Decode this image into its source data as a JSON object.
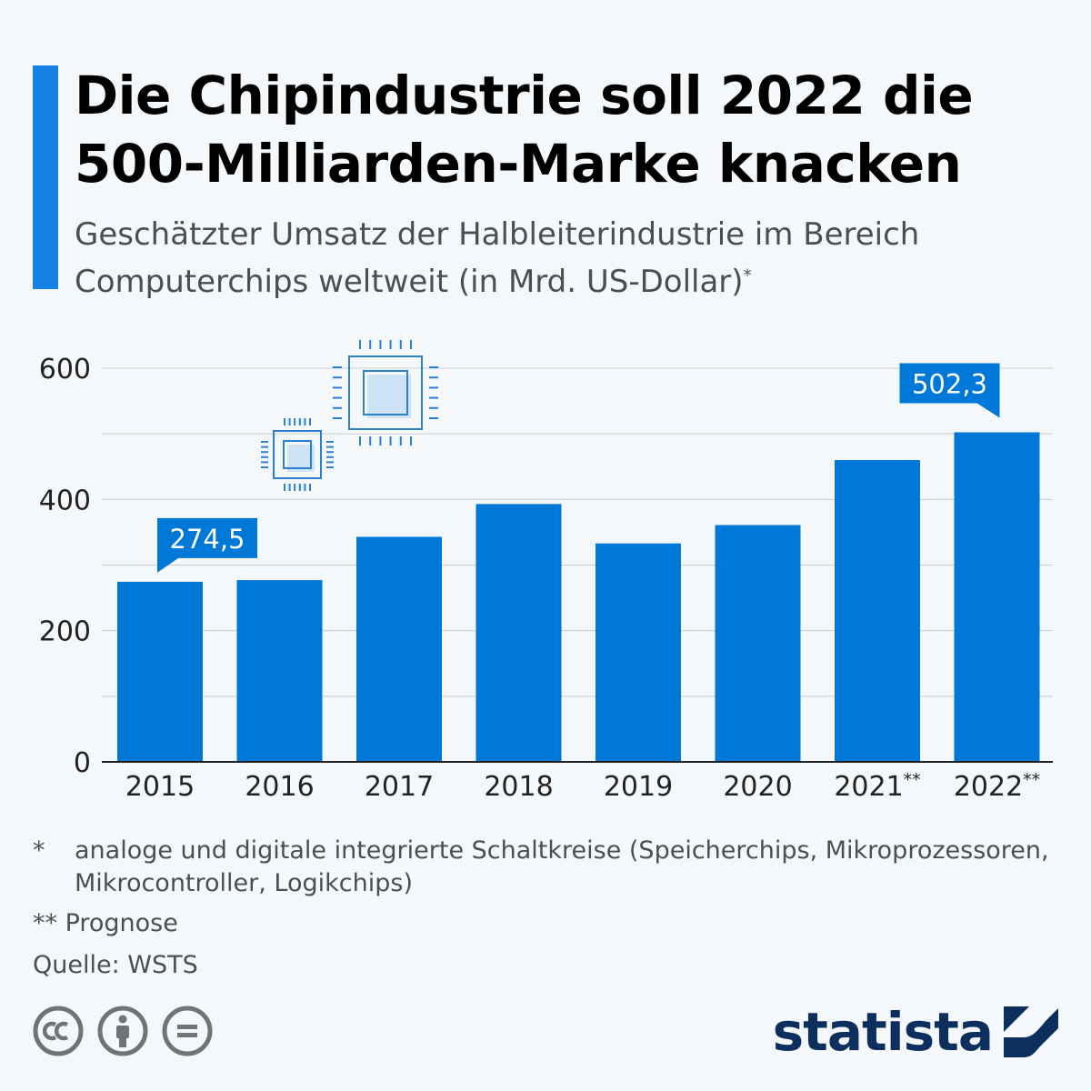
{
  "header": {
    "title_line1": "Die Chipindustrie soll 2022 die",
    "title_line2": "500-Milliarden-Marke knacken",
    "subtitle_line1": "Geschätzter Umsatz der Halbleiterindustrie im Bereich",
    "subtitle_line2": "Computerchips weltweit (in Mrd. US-Dollar)",
    "subtitle_mark": "*"
  },
  "chart_data": {
    "type": "bar",
    "categories": [
      "2015",
      "2016",
      "2017",
      "2018",
      "2019",
      "2020",
      "2021**",
      "2022**"
    ],
    "values": [
      274.5,
      277,
      343,
      393,
      333,
      361,
      460,
      502.3
    ],
    "callouts": [
      {
        "index": 0,
        "label": "274,5"
      },
      {
        "index": 7,
        "label": "502,3"
      }
    ],
    "ylim": [
      0,
      600
    ],
    "yticks": [
      "0",
      "200",
      "400",
      "600"
    ],
    "ytick_values": [
      0,
      200,
      400,
      600
    ],
    "gridline_step": 100,
    "grid": true,
    "bar_color": "#0078d7",
    "callout_color": "#0078d7",
    "decoration": "chip-icons"
  },
  "footnotes": {
    "note1_mark": "*",
    "note1_text": "analoge und digitale integrierte Schaltkreise (Speicherchips, Mikroprozessoren, Mikrocontroller, Logikchips)",
    "note2": "** Prognose",
    "source": "Quelle: WSTS"
  },
  "footer": {
    "license_icons": [
      "cc-icon",
      "attribution-icon",
      "no-derivatives-icon"
    ],
    "brand": "statista"
  },
  "colors": {
    "accent": "#1680e6",
    "bar": "#0078d7",
    "brand": "#0d2f5e",
    "text_secondary": "#4b4f54"
  }
}
